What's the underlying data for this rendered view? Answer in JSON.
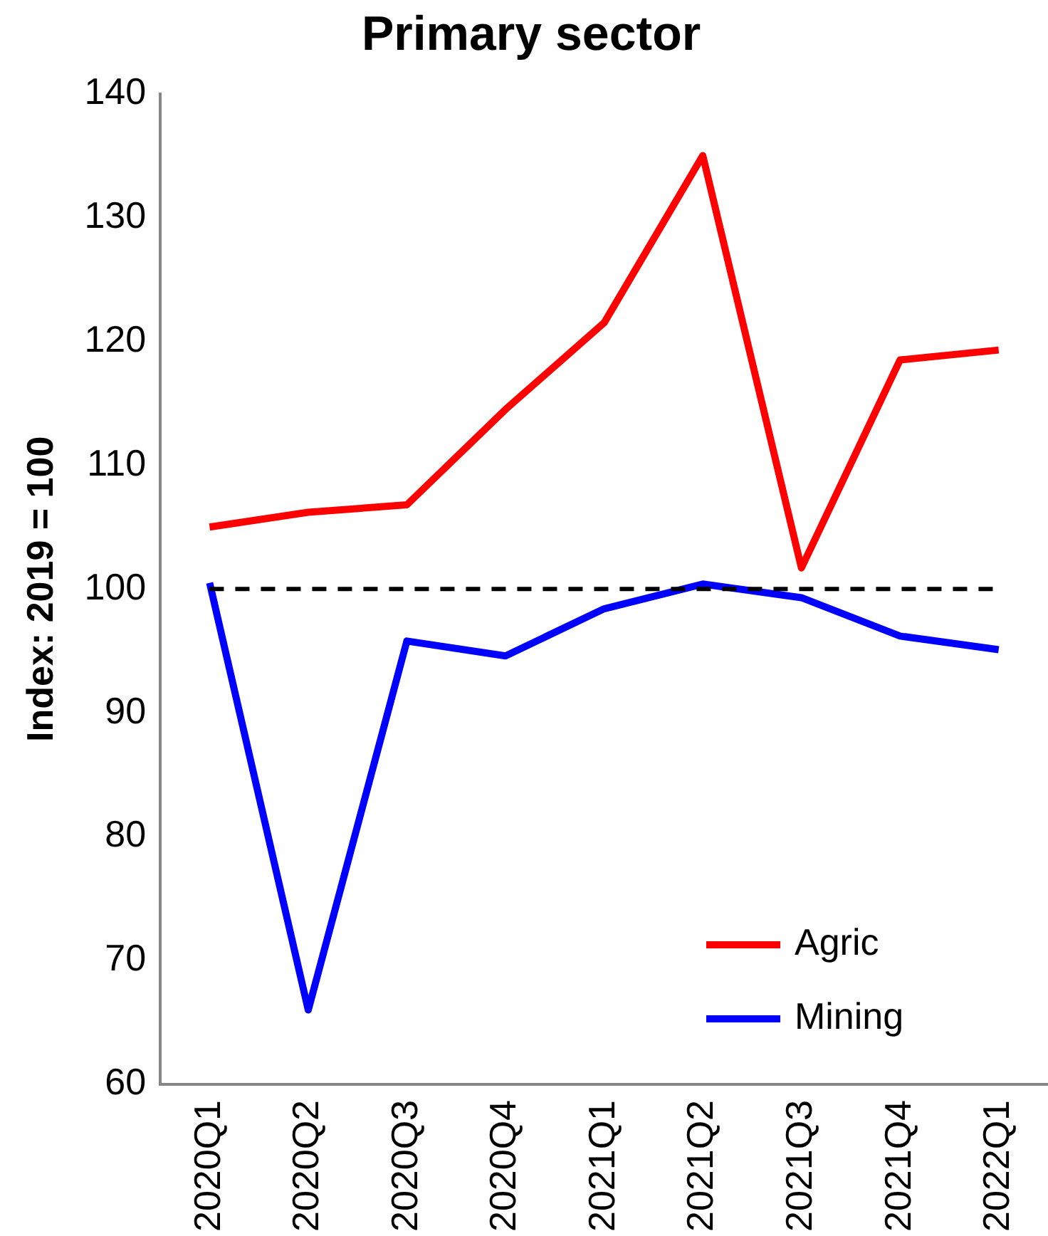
{
  "chart_data": {
    "type": "line",
    "title": "Primary sector",
    "ylabel": "Index: 2019 = 100",
    "categories": [
      "2020Q1",
      "2020Q2",
      "2020Q3",
      "2020Q4",
      "2021Q1",
      "2021Q2",
      "2021Q3",
      "2021Q4",
      "2022Q1"
    ],
    "series": [
      {
        "name": "Agric",
        "color": "#ff0000",
        "values": [
          105,
          106.2,
          106.8,
          114.5,
          121.5,
          135,
          101.7,
          118.5,
          119.3
        ]
      },
      {
        "name": "Mining",
        "color": "#0000ff",
        "values": [
          100.5,
          66,
          95.8,
          94.6,
          98.4,
          100.4,
          99.3,
          96.2,
          95.1
        ]
      }
    ],
    "ylim": [
      60,
      140
    ],
    "yticks": [
      60,
      70,
      80,
      90,
      100,
      110,
      120,
      130,
      140
    ],
    "ref_lines": [
      {
        "axis": "y",
        "value": 100,
        "color": "#000000",
        "line_style": "dashed"
      }
    ],
    "grid": false,
    "legend": "bottom right",
    "marker": "none",
    "line_style": "solid"
  }
}
